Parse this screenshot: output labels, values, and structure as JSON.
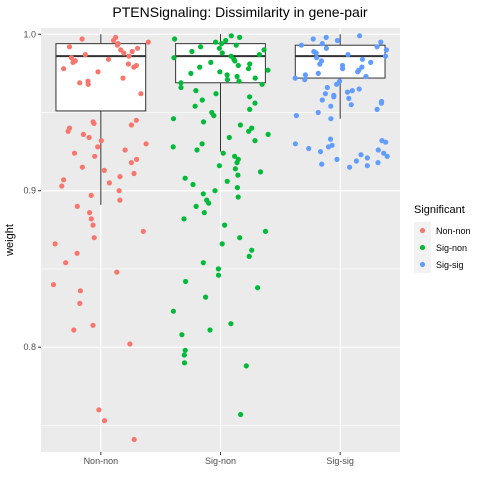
{
  "chart_data": {
    "type": "box-jitter",
    "title": "PTENSignaling: Dissimilarity in gene-pair",
    "xlabel": "",
    "ylabel": "weight",
    "categories": [
      "Non-non",
      "Sig-non",
      "Sig-sig"
    ],
    "ylim": [
      0.733,
      1.004
    ],
    "yticks": [
      0.8,
      0.9,
      1.0
    ],
    "ytick_labels": [
      "0.8",
      "0.9",
      "1.0"
    ],
    "grid": true,
    "legend": {
      "title": "Significant",
      "position": "right",
      "entries": [
        "Non-non",
        "Sig-non",
        "Sig-sig"
      ]
    },
    "colors": {
      "Non-non": "#F8766D",
      "Sig-non": "#00BA38",
      "Sig-sig": "#619CFF",
      "panel": "#EBEBEB",
      "grid": "#FFFFFF"
    },
    "boxes": [
      {
        "category": "Non-non",
        "q1": 0.951,
        "median": 0.986,
        "q3": 0.994,
        "whisker_low": 0.891,
        "whisker_high": 1.0
      },
      {
        "category": "Sig-non",
        "q1": 0.969,
        "median": 0.986,
        "q3": 0.994,
        "whisker_low": 0.925,
        "whisker_high": 1.0
      },
      {
        "category": "Sig-sig",
        "q1": 0.972,
        "median": 0.986,
        "q3": 0.993,
        "whisker_low": 0.946,
        "whisker_high": 1.0
      }
    ],
    "series": [
      {
        "name": "Non-non",
        "points": [
          {
            "x": "Non-non",
            "y": 0.998
          },
          {
            "x": "Non-non",
            "y": 0.997
          },
          {
            "x": "Non-non",
            "y": 0.996
          },
          {
            "x": "Non-non",
            "y": 0.995
          },
          {
            "x": "Non-non",
            "y": 0.994
          },
          {
            "x": "Non-non",
            "y": 0.993
          },
          {
            "x": "Non-non",
            "y": 0.992
          },
          {
            "x": "Non-non",
            "y": 0.991
          },
          {
            "x": "Non-non",
            "y": 0.99
          },
          {
            "x": "Non-non",
            "y": 0.989
          },
          {
            "x": "Non-non",
            "y": 0.988
          },
          {
            "x": "Non-non",
            "y": 0.987
          },
          {
            "x": "Non-non",
            "y": 0.986
          },
          {
            "x": "Non-non",
            "y": 0.985
          },
          {
            "x": "Non-non",
            "y": 0.984
          },
          {
            "x": "Non-non",
            "y": 0.983
          },
          {
            "x": "Non-non",
            "y": 0.982
          },
          {
            "x": "Non-non",
            "y": 0.981
          },
          {
            "x": "Non-non",
            "y": 0.98
          },
          {
            "x": "Non-non",
            "y": 0.979
          },
          {
            "x": "Non-non",
            "y": 0.978
          },
          {
            "x": "Non-non",
            "y": 0.976
          },
          {
            "x": "Non-non",
            "y": 0.972
          },
          {
            "x": "Non-non",
            "y": 0.97
          },
          {
            "x": "Non-non",
            "y": 0.969
          },
          {
            "x": "Non-non",
            "y": 0.968
          },
          {
            "x": "Non-non",
            "y": 0.962
          },
          {
            "x": "Non-non",
            "y": 0.945
          },
          {
            "x": "Non-non",
            "y": 0.944
          },
          {
            "x": "Non-non",
            "y": 0.943
          },
          {
            "x": "Non-non",
            "y": 0.942
          },
          {
            "x": "Non-non",
            "y": 0.94
          },
          {
            "x": "Non-non",
            "y": 0.938
          },
          {
            "x": "Non-non",
            "y": 0.936
          },
          {
            "x": "Non-non",
            "y": 0.934
          },
          {
            "x": "Non-non",
            "y": 0.932
          },
          {
            "x": "Non-non",
            "y": 0.93
          },
          {
            "x": "Non-non",
            "y": 0.928
          },
          {
            "x": "Non-non",
            "y": 0.926
          },
          {
            "x": "Non-non",
            "y": 0.924
          },
          {
            "x": "Non-non",
            "y": 0.922
          },
          {
            "x": "Non-non",
            "y": 0.92
          },
          {
            "x": "Non-non",
            "y": 0.918
          },
          {
            "x": "Non-non",
            "y": 0.915
          },
          {
            "x": "Non-non",
            "y": 0.913
          },
          {
            "x": "Non-non",
            "y": 0.911
          },
          {
            "x": "Non-non",
            "y": 0.909
          },
          {
            "x": "Non-non",
            "y": 0.907
          },
          {
            "x": "Non-non",
            "y": 0.905
          },
          {
            "x": "Non-non",
            "y": 0.903
          },
          {
            "x": "Non-non",
            "y": 0.9
          },
          {
            "x": "Non-non",
            "y": 0.897
          },
          {
            "x": "Non-non",
            "y": 0.894
          },
          {
            "x": "Non-non",
            "y": 0.89
          },
          {
            "x": "Non-non",
            "y": 0.886
          },
          {
            "x": "Non-non",
            "y": 0.882
          },
          {
            "x": "Non-non",
            "y": 0.878
          },
          {
            "x": "Non-non",
            "y": 0.874
          },
          {
            "x": "Non-non",
            "y": 0.87
          },
          {
            "x": "Non-non",
            "y": 0.866
          },
          {
            "x": "Non-non",
            "y": 0.86
          },
          {
            "x": "Non-non",
            "y": 0.854
          },
          {
            "x": "Non-non",
            "y": 0.848
          },
          {
            "x": "Non-non",
            "y": 0.84
          },
          {
            "x": "Non-non",
            "y": 0.836
          },
          {
            "x": "Non-non",
            "y": 0.828
          },
          {
            "x": "Non-non",
            "y": 0.814
          },
          {
            "x": "Non-non",
            "y": 0.811
          },
          {
            "x": "Non-non",
            "y": 0.802
          },
          {
            "x": "Non-non",
            "y": 0.76
          },
          {
            "x": "Non-non",
            "y": 0.753
          },
          {
            "x": "Non-non",
            "y": 0.741
          }
        ]
      },
      {
        "name": "Sig-non",
        "points": [
          {
            "x": "Sig-non",
            "y": 0.999
          },
          {
            "x": "Sig-non",
            "y": 0.998
          },
          {
            "x": "Sig-non",
            "y": 0.997
          },
          {
            "x": "Sig-non",
            "y": 0.996
          },
          {
            "x": "Sig-non",
            "y": 0.995
          },
          {
            "x": "Sig-non",
            "y": 0.994
          },
          {
            "x": "Sig-non",
            "y": 0.993
          },
          {
            "x": "Sig-non",
            "y": 0.992
          },
          {
            "x": "Sig-non",
            "y": 0.991
          },
          {
            "x": "Sig-non",
            "y": 0.99
          },
          {
            "x": "Sig-non",
            "y": 0.989
          },
          {
            "x": "Sig-non",
            "y": 0.988
          },
          {
            "x": "Sig-non",
            "y": 0.987
          },
          {
            "x": "Sig-non",
            "y": 0.986
          },
          {
            "x": "Sig-non",
            "y": 0.985
          },
          {
            "x": "Sig-non",
            "y": 0.984
          },
          {
            "x": "Sig-non",
            "y": 0.983
          },
          {
            "x": "Sig-non",
            "y": 0.982
          },
          {
            "x": "Sig-non",
            "y": 0.981
          },
          {
            "x": "Sig-non",
            "y": 0.98
          },
          {
            "x": "Sig-non",
            "y": 0.979
          },
          {
            "x": "Sig-non",
            "y": 0.978
          },
          {
            "x": "Sig-non",
            "y": 0.977
          },
          {
            "x": "Sig-non",
            "y": 0.976
          },
          {
            "x": "Sig-non",
            "y": 0.975
          },
          {
            "x": "Sig-non",
            "y": 0.974
          },
          {
            "x": "Sig-non",
            "y": 0.973
          },
          {
            "x": "Sig-non",
            "y": 0.972
          },
          {
            "x": "Sig-non",
            "y": 0.971
          },
          {
            "x": "Sig-non",
            "y": 0.97
          },
          {
            "x": "Sig-non",
            "y": 0.969
          },
          {
            "x": "Sig-non",
            "y": 0.968
          },
          {
            "x": "Sig-non",
            "y": 0.966
          },
          {
            "x": "Sig-non",
            "y": 0.964
          },
          {
            "x": "Sig-non",
            "y": 0.962
          },
          {
            "x": "Sig-non",
            "y": 0.96
          },
          {
            "x": "Sig-non",
            "y": 0.958
          },
          {
            "x": "Sig-non",
            "y": 0.956
          },
          {
            "x": "Sig-non",
            "y": 0.954
          },
          {
            "x": "Sig-non",
            "y": 0.952
          },
          {
            "x": "Sig-non",
            "y": 0.95
          },
          {
            "x": "Sig-non",
            "y": 0.948
          },
          {
            "x": "Sig-non",
            "y": 0.946
          },
          {
            "x": "Sig-non",
            "y": 0.944
          },
          {
            "x": "Sig-non",
            "y": 0.942
          },
          {
            "x": "Sig-non",
            "y": 0.94
          },
          {
            "x": "Sig-non",
            "y": 0.938
          },
          {
            "x": "Sig-non",
            "y": 0.936
          },
          {
            "x": "Sig-non",
            "y": 0.934
          },
          {
            "x": "Sig-non",
            "y": 0.932
          },
          {
            "x": "Sig-non",
            "y": 0.93
          },
          {
            "x": "Sig-non",
            "y": 0.928
          },
          {
            "x": "Sig-non",
            "y": 0.926
          },
          {
            "x": "Sig-non",
            "y": 0.924
          },
          {
            "x": "Sig-non",
            "y": 0.922
          },
          {
            "x": "Sig-non",
            "y": 0.92
          },
          {
            "x": "Sig-non",
            "y": 0.918
          },
          {
            "x": "Sig-non",
            "y": 0.916
          },
          {
            "x": "Sig-non",
            "y": 0.914
          },
          {
            "x": "Sig-non",
            "y": 0.912
          },
          {
            "x": "Sig-non",
            "y": 0.91
          },
          {
            "x": "Sig-non",
            "y": 0.908
          },
          {
            "x": "Sig-non",
            "y": 0.906
          },
          {
            "x": "Sig-non",
            "y": 0.904
          },
          {
            "x": "Sig-non",
            "y": 0.902
          },
          {
            "x": "Sig-non",
            "y": 0.9
          },
          {
            "x": "Sig-non",
            "y": 0.898
          },
          {
            "x": "Sig-non",
            "y": 0.896
          },
          {
            "x": "Sig-non",
            "y": 0.894
          },
          {
            "x": "Sig-non",
            "y": 0.892
          },
          {
            "x": "Sig-non",
            "y": 0.89
          },
          {
            "x": "Sig-non",
            "y": 0.886
          },
          {
            "x": "Sig-non",
            "y": 0.882
          },
          {
            "x": "Sig-non",
            "y": 0.878
          },
          {
            "x": "Sig-non",
            "y": 0.874
          },
          {
            "x": "Sig-non",
            "y": 0.87
          },
          {
            "x": "Sig-non",
            "y": 0.866
          },
          {
            "x": "Sig-non",
            "y": 0.862
          },
          {
            "x": "Sig-non",
            "y": 0.858
          },
          {
            "x": "Sig-non",
            "y": 0.854
          },
          {
            "x": "Sig-non",
            "y": 0.85
          },
          {
            "x": "Sig-non",
            "y": 0.846
          },
          {
            "x": "Sig-non",
            "y": 0.842
          },
          {
            "x": "Sig-non",
            "y": 0.838
          },
          {
            "x": "Sig-non",
            "y": 0.832
          },
          {
            "x": "Sig-non",
            "y": 0.823
          },
          {
            "x": "Sig-non",
            "y": 0.815
          },
          {
            "x": "Sig-non",
            "y": 0.811
          },
          {
            "x": "Sig-non",
            "y": 0.808
          },
          {
            "x": "Sig-non",
            "y": 0.798
          },
          {
            "x": "Sig-non",
            "y": 0.795
          },
          {
            "x": "Sig-non",
            "y": 0.79
          },
          {
            "x": "Sig-non",
            "y": 0.788
          },
          {
            "x": "Sig-non",
            "y": 0.757
          }
        ]
      },
      {
        "name": "Sig-sig",
        "points": [
          {
            "x": "Sig-sig",
            "y": 0.999
          },
          {
            "x": "Sig-sig",
            "y": 0.998
          },
          {
            "x": "Sig-sig",
            "y": 0.997
          },
          {
            "x": "Sig-sig",
            "y": 0.996
          },
          {
            "x": "Sig-sig",
            "y": 0.995
          },
          {
            "x": "Sig-sig",
            "y": 0.994
          },
          {
            "x": "Sig-sig",
            "y": 0.993
          },
          {
            "x": "Sig-sig",
            "y": 0.992
          },
          {
            "x": "Sig-sig",
            "y": 0.991
          },
          {
            "x": "Sig-sig",
            "y": 0.99
          },
          {
            "x": "Sig-sig",
            "y": 0.989
          },
          {
            "x": "Sig-sig",
            "y": 0.988
          },
          {
            "x": "Sig-sig",
            "y": 0.987
          },
          {
            "x": "Sig-sig",
            "y": 0.986
          },
          {
            "x": "Sig-sig",
            "y": 0.985
          },
          {
            "x": "Sig-sig",
            "y": 0.984
          },
          {
            "x": "Sig-sig",
            "y": 0.983
          },
          {
            "x": "Sig-sig",
            "y": 0.982
          },
          {
            "x": "Sig-sig",
            "y": 0.981
          },
          {
            "x": "Sig-sig",
            "y": 0.98
          },
          {
            "x": "Sig-sig",
            "y": 0.979
          },
          {
            "x": "Sig-sig",
            "y": 0.978
          },
          {
            "x": "Sig-sig",
            "y": 0.977
          },
          {
            "x": "Sig-sig",
            "y": 0.976
          },
          {
            "x": "Sig-sig",
            "y": 0.975
          },
          {
            "x": "Sig-sig",
            "y": 0.974
          },
          {
            "x": "Sig-sig",
            "y": 0.973
          },
          {
            "x": "Sig-sig",
            "y": 0.972
          },
          {
            "x": "Sig-sig",
            "y": 0.971
          },
          {
            "x": "Sig-sig",
            "y": 0.97
          },
          {
            "x": "Sig-sig",
            "y": 0.968
          },
          {
            "x": "Sig-sig",
            "y": 0.966
          },
          {
            "x": "Sig-sig",
            "y": 0.965
          },
          {
            "x": "Sig-sig",
            "y": 0.964
          },
          {
            "x": "Sig-sig",
            "y": 0.963
          },
          {
            "x": "Sig-sig",
            "y": 0.962
          },
          {
            "x": "Sig-sig",
            "y": 0.961
          },
          {
            "x": "Sig-sig",
            "y": 0.96
          },
          {
            "x": "Sig-sig",
            "y": 0.959
          },
          {
            "x": "Sig-sig",
            "y": 0.958
          },
          {
            "x": "Sig-sig",
            "y": 0.957
          },
          {
            "x": "Sig-sig",
            "y": 0.956
          },
          {
            "x": "Sig-sig",
            "y": 0.955
          },
          {
            "x": "Sig-sig",
            "y": 0.954
          },
          {
            "x": "Sig-sig",
            "y": 0.952
          },
          {
            "x": "Sig-sig",
            "y": 0.95
          },
          {
            "x": "Sig-sig",
            "y": 0.948
          },
          {
            "x": "Sig-sig",
            "y": 0.946
          },
          {
            "x": "Sig-sig",
            "y": 0.933
          },
          {
            "x": "Sig-sig",
            "y": 0.932
          },
          {
            "x": "Sig-sig",
            "y": 0.931
          },
          {
            "x": "Sig-sig",
            "y": 0.93
          },
          {
            "x": "Sig-sig",
            "y": 0.929
          },
          {
            "x": "Sig-sig",
            "y": 0.928
          },
          {
            "x": "Sig-sig",
            "y": 0.927
          },
          {
            "x": "Sig-sig",
            "y": 0.926
          },
          {
            "x": "Sig-sig",
            "y": 0.925
          },
          {
            "x": "Sig-sig",
            "y": 0.924
          },
          {
            "x": "Sig-sig",
            "y": 0.923
          },
          {
            "x": "Sig-sig",
            "y": 0.922
          },
          {
            "x": "Sig-sig",
            "y": 0.921
          },
          {
            "x": "Sig-sig",
            "y": 0.92
          },
          {
            "x": "Sig-sig",
            "y": 0.919
          },
          {
            "x": "Sig-sig",
            "y": 0.918
          },
          {
            "x": "Sig-sig",
            "y": 0.917
          },
          {
            "x": "Sig-sig",
            "y": 0.916
          },
          {
            "x": "Sig-sig",
            "y": 0.915
          }
        ]
      }
    ]
  }
}
